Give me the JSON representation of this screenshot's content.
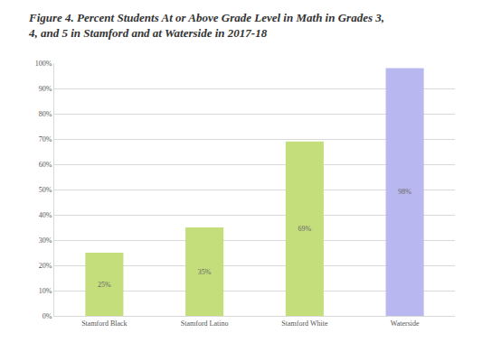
{
  "chart_data": {
    "type": "bar",
    "title": "Figure 4. Percent Students At or Above Grade Level in Math in Grades 3, 4, and 5 in Stamford and at Waterside in 2017-18",
    "categories": [
      "Stamford Black",
      "Stamford Latino",
      "Stamford White",
      "Waterside"
    ],
    "values": [
      25,
      35,
      69,
      98
    ],
    "value_labels": [
      "25%",
      "35%",
      "69%",
      "98%"
    ],
    "colors": [
      "#c4de7c",
      "#c4de7c",
      "#c4de7c",
      "#b9b7ef"
    ],
    "data_labels": true,
    "ylim": [
      0,
      100
    ],
    "yticks": [
      {
        "value": 0,
        "label": "0%"
      },
      {
        "value": 10,
        "label": "10%"
      },
      {
        "value": 20,
        "label": "20%"
      },
      {
        "value": 30,
        "label": "30%"
      },
      {
        "value": 40,
        "label": "40%"
      },
      {
        "value": 50,
        "label": "50%"
      },
      {
        "value": 60,
        "label": "60%"
      },
      {
        "value": 70,
        "label": "70%"
      },
      {
        "value": 80,
        "label": "80%"
      },
      {
        "value": 90,
        "label": "90%"
      },
      {
        "value": 100,
        "label": "100%"
      }
    ],
    "grid": true
  }
}
